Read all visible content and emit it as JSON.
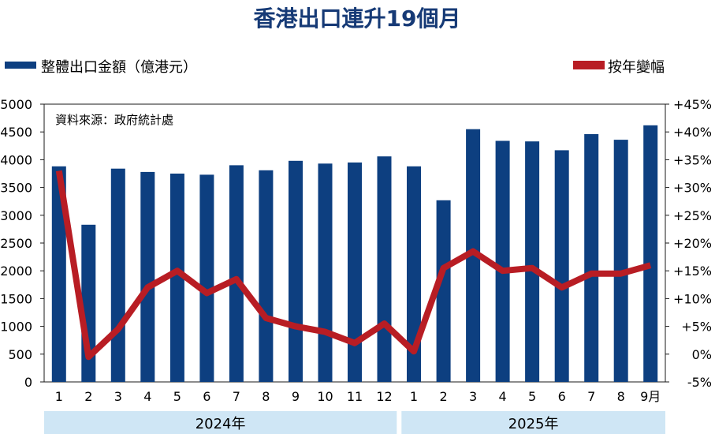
{
  "title": "香港出口連升19個月",
  "source": "資料來源：政府統計處",
  "colors": {
    "bar": "#0d3f80",
    "line": "#b81d24",
    "year_band": "#cfe6f5",
    "title": "#163a76"
  },
  "legend": {
    "bar_label": "整體出口金額（億港元）",
    "line_label": "按年變幅"
  },
  "years": [
    "2024年",
    "2025年"
  ],
  "chart_data": {
    "type": "bar+line",
    "title": "香港出口連升19個月",
    "categories": [
      "1",
      "2",
      "3",
      "4",
      "5",
      "6",
      "7",
      "8",
      "9",
      "10",
      "11",
      "12",
      "1",
      "2",
      "3",
      "4",
      "5",
      "6",
      "7",
      "8",
      "9月"
    ],
    "series": [
      {
        "name": "整體出口金額（億港元）",
        "type": "bar",
        "axis": "left",
        "values": [
          3880,
          2830,
          3840,
          3780,
          3750,
          3730,
          3900,
          3810,
          3980,
          3930,
          3950,
          4060,
          3880,
          3270,
          4550,
          4340,
          4330,
          4170,
          4460,
          4360,
          4620
        ]
      },
      {
        "name": "按年變幅",
        "type": "line",
        "axis": "right",
        "values": [
          33,
          -0.5,
          4.5,
          12,
          15,
          11,
          13.5,
          6.5,
          5,
          4,
          2,
          5.5,
          0.5,
          15.5,
          18.5,
          15,
          15.5,
          12,
          14.5,
          14.5,
          16
        ]
      }
    ],
    "y_left": {
      "min": 0,
      "max": 5000,
      "step": 500,
      "ticks": [
        "0",
        "500",
        "1000",
        "1500",
        "2000",
        "2500",
        "3000",
        "3500",
        "4000",
        "4500",
        "5000"
      ]
    },
    "y_right": {
      "min": -5,
      "max": 45,
      "step": 5,
      "ticks": [
        "-5%",
        "0%",
        "+5%",
        "+10%",
        "+15%",
        "+20%",
        "+25%",
        "+30%",
        "+35%",
        "+40%",
        "+45%"
      ]
    },
    "legend_position": "top",
    "grid": false
  }
}
